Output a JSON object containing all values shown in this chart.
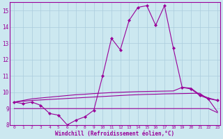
{
  "xlabel": "Windchill (Refroidissement éolien,°C)",
  "bg_color": "#cce8f0",
  "grid_color": "#aaccdd",
  "line_color": "#990099",
  "xlim_min": -0.5,
  "xlim_max": 23.3,
  "ylim_min": 8.0,
  "ylim_max": 15.5,
  "yticks": [
    8,
    9,
    10,
    11,
    12,
    13,
    14,
    15
  ],
  "xticks": [
    0,
    1,
    2,
    3,
    4,
    5,
    6,
    7,
    8,
    9,
    10,
    11,
    12,
    13,
    14,
    15,
    16,
    17,
    18,
    19,
    20,
    21,
    22,
    23
  ],
  "line1_x": [
    0,
    1,
    2,
    3,
    4,
    5,
    6,
    7,
    8,
    9,
    10,
    11,
    12,
    13,
    14,
    15,
    16,
    17,
    18,
    19,
    20,
    21,
    22,
    23
  ],
  "line1_y": [
    9.4,
    9.3,
    9.4,
    9.2,
    8.7,
    8.6,
    8.0,
    8.3,
    8.5,
    8.9,
    11.0,
    13.3,
    12.6,
    14.4,
    15.2,
    15.3,
    14.1,
    15.3,
    12.7,
    10.3,
    10.2,
    9.8,
    9.6,
    9.5
  ],
  "line2_x": [
    0,
    1,
    2,
    3,
    4,
    5,
    6,
    7,
    8,
    9,
    10,
    11,
    12,
    13,
    14,
    15,
    16,
    17,
    18,
    19,
    20,
    21,
    22,
    23
  ],
  "line2_y": [
    9.4,
    9.5,
    9.6,
    9.65,
    9.7,
    9.75,
    9.8,
    9.85,
    9.88,
    9.92,
    9.95,
    9.98,
    10.0,
    10.02,
    10.04,
    10.05,
    10.06,
    10.07,
    10.08,
    10.3,
    10.25,
    9.85,
    9.65,
    9.5
  ],
  "line3_x": [
    0,
    1,
    2,
    3,
    4,
    5,
    6,
    7,
    8,
    9,
    10,
    11,
    12,
    13,
    14,
    15,
    16,
    17,
    18,
    19,
    20,
    21,
    22,
    23
  ],
  "line3_y": [
    9.4,
    9.45,
    9.5,
    9.53,
    9.56,
    9.59,
    9.62,
    9.65,
    9.68,
    9.71,
    9.74,
    9.77,
    9.8,
    9.83,
    9.85,
    9.87,
    9.88,
    9.9,
    9.91,
    9.92,
    9.93,
    9.94,
    9.55,
    8.8
  ],
  "line4_x": [
    0,
    1,
    2,
    3,
    4,
    5,
    6,
    7,
    8,
    9,
    10,
    11,
    12,
    13,
    14,
    15,
    16,
    17,
    18,
    19,
    20,
    21,
    22,
    23
  ],
  "line4_y": [
    9.0,
    9.0,
    9.0,
    9.0,
    9.0,
    9.0,
    9.0,
    9.0,
    9.0,
    9.0,
    9.0,
    9.0,
    9.0,
    9.0,
    9.0,
    9.0,
    9.0,
    9.0,
    9.0,
    9.0,
    9.0,
    9.0,
    9.0,
    8.75
  ]
}
